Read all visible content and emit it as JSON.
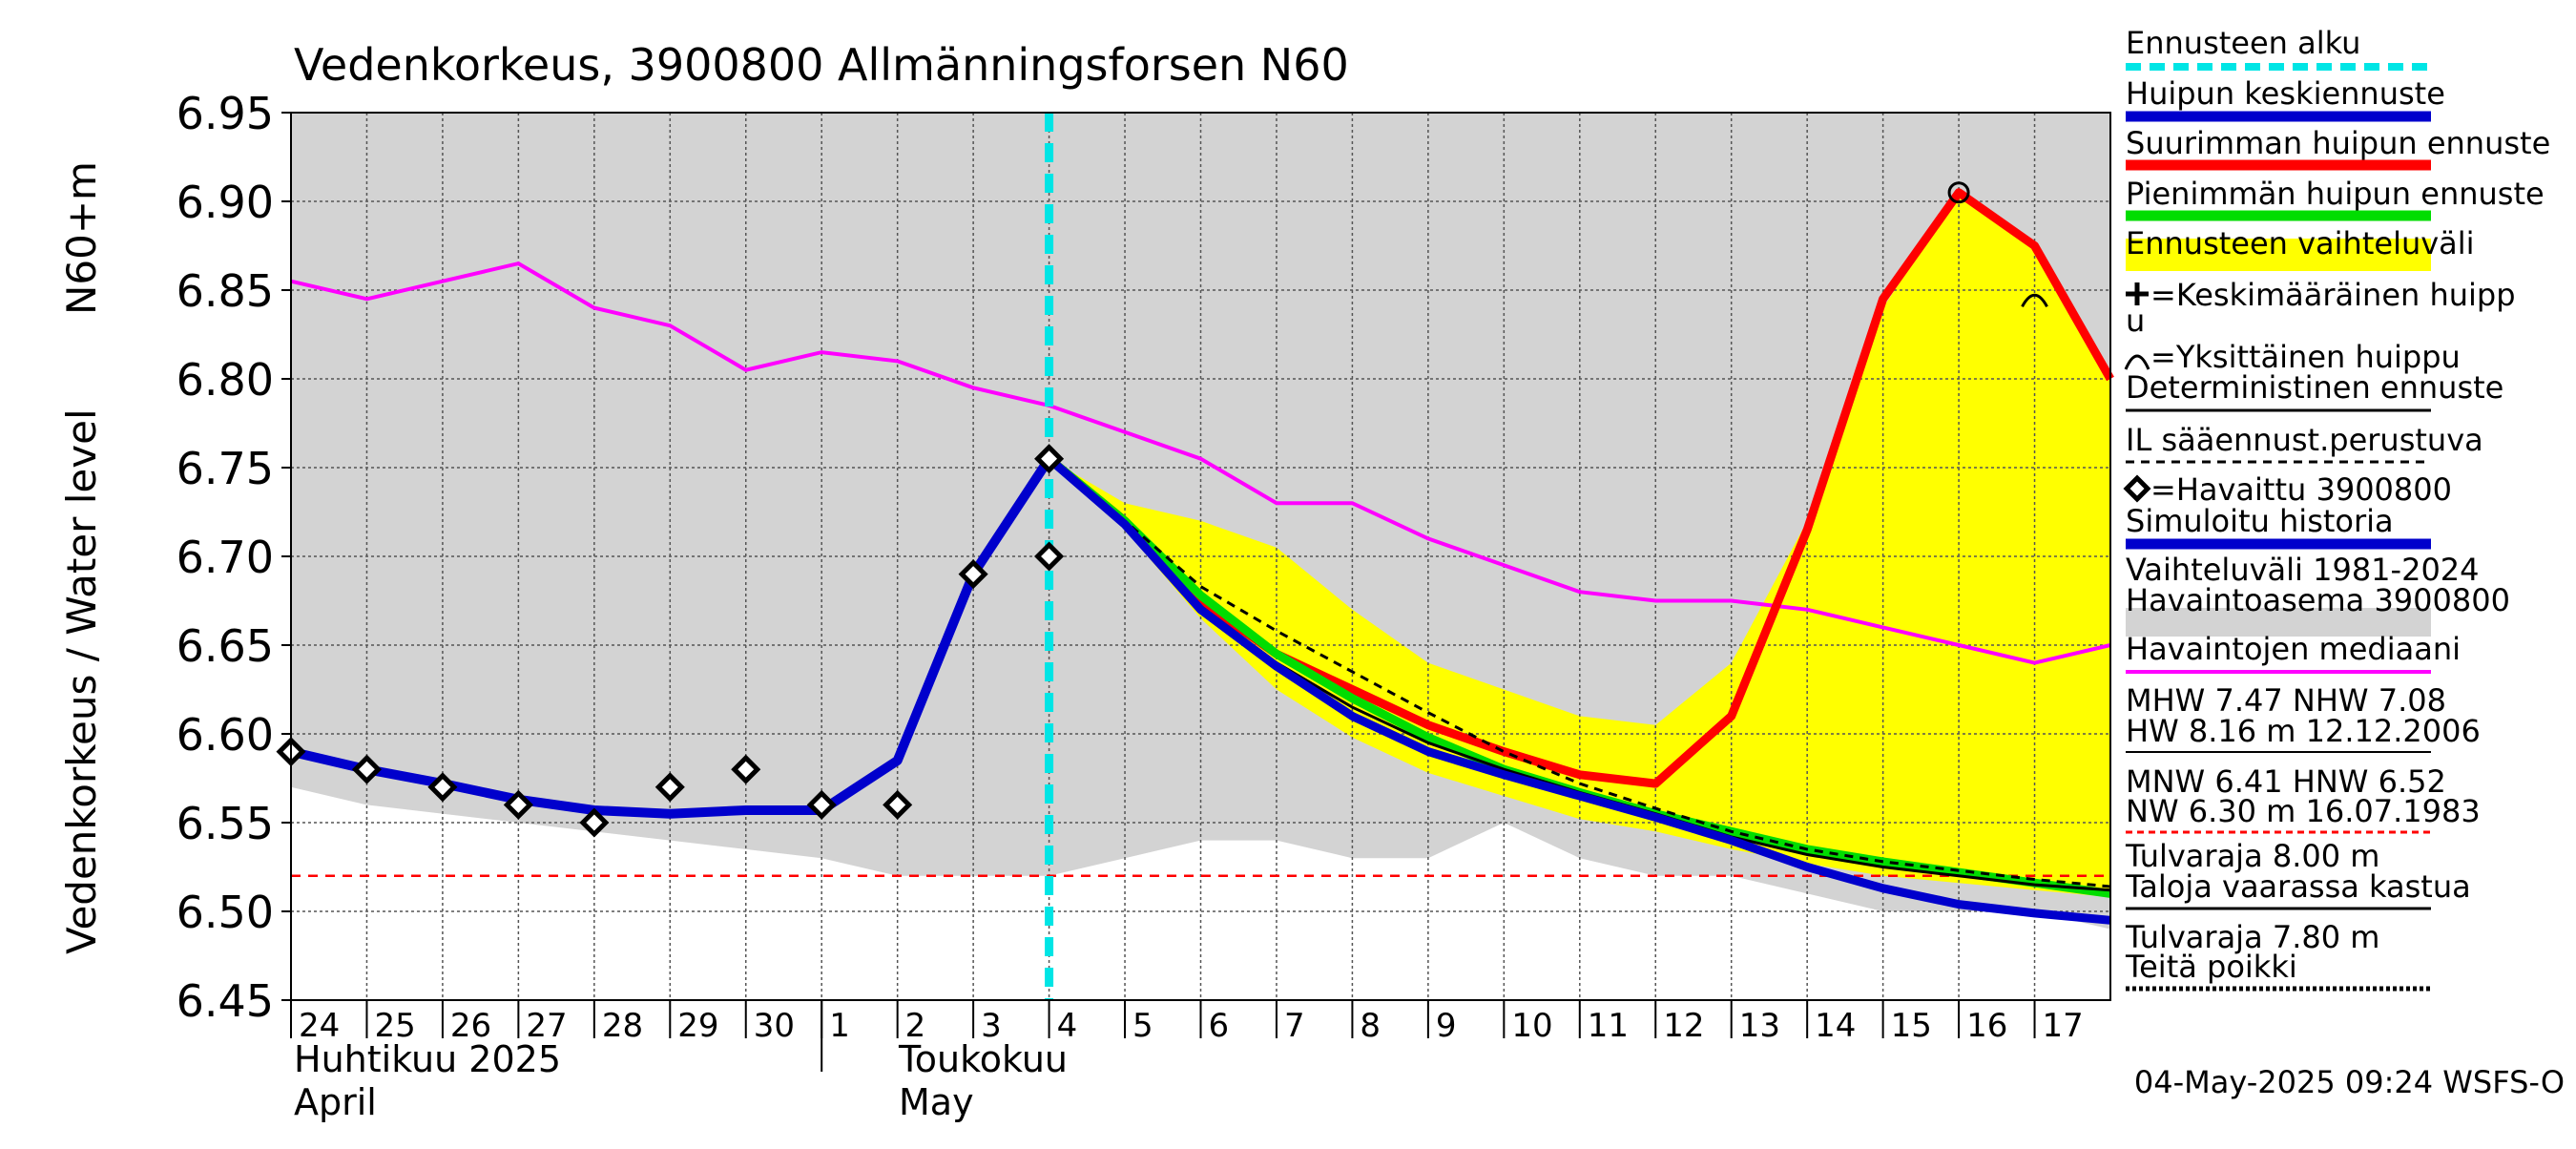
{
  "chart_data": {
    "type": "line",
    "title": "Vedenkorkeus, 3900800 Allmänningsforsen N60",
    "ylabel": "Vedenkorkeus / Water level",
    "ylabel_unit": "N60+m",
    "ylim": [
      6.45,
      6.95
    ],
    "yticks": [
      "6.45",
      "6.50",
      "6.55",
      "6.60",
      "6.65",
      "6.70",
      "6.75",
      "6.80",
      "6.85",
      "6.90",
      "6.95"
    ],
    "x_range_days": [
      0,
      24
    ],
    "day_labels": [
      "24",
      "25",
      "26",
      "27",
      "28",
      "29",
      "30",
      "1",
      "2",
      "3",
      "4",
      "5",
      "6",
      "7",
      "8",
      "9",
      "10",
      "11",
      "12",
      "13",
      "14",
      "15",
      "16",
      "17"
    ],
    "month_labels": {
      "april_fi": "Huhtikuu  2025",
      "april_en": "April",
      "may_fi": "Toukokuu",
      "may_en": "May"
    },
    "month_boundary_day": 7,
    "forecast_start_day": 10,
    "timestamp": "04-May-2025 09:24 WSFS-O",
    "series": {
      "range_upper": [
        [
          0,
          6.95
        ],
        [
          24,
          6.95
        ]
      ],
      "range_lower": [
        [
          0,
          6.57
        ],
        [
          1,
          6.56
        ],
        [
          7,
          6.53
        ],
        [
          8,
          6.52
        ],
        [
          10,
          6.52
        ],
        [
          11,
          6.53
        ],
        [
          12,
          6.54
        ],
        [
          13,
          6.54
        ],
        [
          14,
          6.53
        ],
        [
          15,
          6.53
        ],
        [
          16,
          6.55
        ],
        [
          17,
          6.53
        ],
        [
          18,
          6.52
        ],
        [
          19,
          6.52
        ],
        [
          20,
          6.51
        ],
        [
          21,
          6.5
        ],
        [
          22,
          6.5
        ],
        [
          23,
          6.5
        ],
        [
          24,
          6.49
        ]
      ],
      "forecast_band_upper": [
        [
          10,
          6.755
        ],
        [
          11,
          6.73
        ],
        [
          12,
          6.72
        ],
        [
          13,
          6.705
        ],
        [
          14,
          6.67
        ],
        [
          15,
          6.64
        ],
        [
          16,
          6.625
        ],
        [
          17,
          6.61
        ],
        [
          18,
          6.605
        ],
        [
          19,
          6.64
        ],
        [
          20,
          6.72
        ],
        [
          21,
          6.84
        ],
        [
          22,
          6.905
        ],
        [
          23,
          6.875
        ],
        [
          24,
          6.8
        ]
      ],
      "forecast_band_lower": [
        [
          10,
          6.755
        ],
        [
          11,
          6.715
        ],
        [
          12,
          6.665
        ],
        [
          13,
          6.625
        ],
        [
          14,
          6.598
        ],
        [
          15,
          6.578
        ],
        [
          16,
          6.565
        ],
        [
          17,
          6.552
        ],
        [
          18,
          6.545
        ],
        [
          19,
          6.535
        ],
        [
          20,
          6.527
        ],
        [
          21,
          6.52
        ],
        [
          22,
          6.516
        ],
        [
          23,
          6.512
        ],
        [
          24,
          6.508
        ]
      ],
      "median": [
        [
          0,
          6.855
        ],
        [
          1,
          6.845
        ],
        [
          2,
          6.855
        ],
        [
          3,
          6.865
        ],
        [
          4,
          6.84
        ],
        [
          5,
          6.83
        ],
        [
          6,
          6.805
        ],
        [
          7,
          6.815
        ],
        [
          8,
          6.81
        ],
        [
          9,
          6.795
        ],
        [
          10,
          6.785
        ],
        [
          11,
          6.77
        ],
        [
          12,
          6.755
        ],
        [
          13,
          6.73
        ],
        [
          14,
          6.73
        ],
        [
          15,
          6.71
        ],
        [
          16,
          6.695
        ],
        [
          17,
          6.68
        ],
        [
          18,
          6.675
        ],
        [
          19,
          6.675
        ],
        [
          20,
          6.67
        ],
        [
          21,
          6.66
        ],
        [
          22,
          6.65
        ],
        [
          23,
          6.64
        ],
        [
          24,
          6.65
        ]
      ],
      "simulated_history": [
        [
          0,
          6.59
        ],
        [
          1,
          6.58
        ],
        [
          2,
          6.572
        ],
        [
          3,
          6.563
        ],
        [
          4,
          6.557
        ],
        [
          5,
          6.555
        ],
        [
          6,
          6.557
        ],
        [
          7,
          6.557
        ],
        [
          8,
          6.585
        ],
        [
          9,
          6.69
        ],
        [
          10,
          6.755
        ]
      ],
      "max_peak_forecast": [
        [
          10,
          6.755
        ],
        [
          11,
          6.72
        ],
        [
          12,
          6.675
        ],
        [
          13,
          6.645
        ],
        [
          14,
          6.625
        ],
        [
          15,
          6.605
        ],
        [
          16,
          6.59
        ],
        [
          17,
          6.577
        ],
        [
          18,
          6.572
        ],
        [
          19,
          6.61
        ],
        [
          20,
          6.715
        ],
        [
          21,
          6.845
        ],
        [
          22,
          6.905
        ],
        [
          23,
          6.875
        ],
        [
          24,
          6.8
        ]
      ],
      "min_peak_forecast": [
        [
          10,
          6.755
        ],
        [
          11,
          6.72
        ],
        [
          12,
          6.678
        ],
        [
          13,
          6.645
        ],
        [
          14,
          6.62
        ],
        [
          15,
          6.598
        ],
        [
          16,
          6.58
        ],
        [
          17,
          6.567
        ],
        [
          18,
          6.555
        ],
        [
          19,
          6.545
        ],
        [
          20,
          6.535
        ],
        [
          21,
          6.528
        ],
        [
          22,
          6.522
        ],
        [
          23,
          6.516
        ],
        [
          24,
          6.51
        ]
      ],
      "deterministic": [
        [
          10,
          6.755
        ],
        [
          11,
          6.72
        ],
        [
          12,
          6.672
        ],
        [
          13,
          6.64
        ],
        [
          14,
          6.615
        ],
        [
          15,
          6.595
        ],
        [
          16,
          6.58
        ],
        [
          17,
          6.567
        ],
        [
          18,
          6.555
        ],
        [
          19,
          6.542
        ],
        [
          20,
          6.532
        ],
        [
          21,
          6.525
        ],
        [
          22,
          6.52
        ],
        [
          23,
          6.515
        ],
        [
          24,
          6.512
        ]
      ],
      "weather_forecast_based": [
        [
          10,
          6.755
        ],
        [
          11,
          6.72
        ],
        [
          12,
          6.683
        ],
        [
          13,
          6.658
        ],
        [
          14,
          6.635
        ],
        [
          15,
          6.612
        ],
        [
          16,
          6.59
        ],
        [
          17,
          6.572
        ],
        [
          18,
          6.558
        ],
        [
          19,
          6.545
        ],
        [
          20,
          6.535
        ],
        [
          21,
          6.528
        ],
        [
          22,
          6.523
        ],
        [
          23,
          6.518
        ],
        [
          24,
          6.514
        ]
      ],
      "mean_peak_forecast": [
        [
          10,
          6.755
        ],
        [
          11,
          6.718
        ],
        [
          12,
          6.67
        ],
        [
          13,
          6.638
        ],
        [
          14,
          6.61
        ],
        [
          15,
          6.59
        ],
        [
          16,
          6.577
        ],
        [
          17,
          6.565
        ],
        [
          18,
          6.553
        ],
        [
          19,
          6.54
        ],
        [
          20,
          6.525
        ],
        [
          21,
          6.513
        ],
        [
          22,
          6.504
        ],
        [
          23,
          6.499
        ],
        [
          24,
          6.495
        ]
      ],
      "observed": [
        [
          0,
          6.59
        ],
        [
          1,
          6.58
        ],
        [
          2,
          6.57
        ],
        [
          3,
          6.56
        ],
        [
          4,
          6.55
        ],
        [
          5,
          6.57
        ],
        [
          6,
          6.58
        ],
        [
          7,
          6.56
        ],
        [
          8,
          6.56
        ],
        [
          9,
          6.69
        ],
        [
          10,
          6.7
        ],
        [
          10,
          6.755
        ]
      ],
      "peak_marks": [
        [
          22,
          6.905
        ],
        [
          23,
          6.845
        ]
      ],
      "flood_line": 6.52
    },
    "colors": {
      "range": "#d3d3d3",
      "band": "#ffff00",
      "median": "#ff00ff",
      "history": "#0000cc",
      "max": "#ff0000",
      "min": "#00dd00",
      "forecast_start": "#00e5e5",
      "flood": "#ff0000"
    }
  },
  "legend": [
    {
      "label": "Ennusteen alku",
      "style": "cyan-dash"
    },
    {
      "label": "Huipun keskiennuste",
      "style": "blue"
    },
    {
      "label": "Suurimman huipun ennuste",
      "style": "red"
    },
    {
      "label": "Pienimmän huipun ennuste",
      "style": "green"
    },
    {
      "label": "Ennusteen vaihteluväli",
      "style": "yellow"
    },
    {
      "label": "=Keskimääräinen huipp",
      "label2": "u",
      "style": "plus"
    },
    {
      "label": "=Yksittäinen huippu",
      "style": "arc"
    },
    {
      "label": "Deterministinen ennuste",
      "style": "black"
    },
    {
      "label": "IL sääennust.perustuva",
      "style": "black-dash"
    },
    {
      "label": "=Havaittu 3900800",
      "style": "diamond"
    },
    {
      "label": "Simuloitu historia",
      "style": "blue"
    },
    {
      "label": "Vaihteluväli 1981-2024",
      "label2": " Havaintoasema 3900800",
      "style": "gray"
    },
    {
      "label": "Havaintojen mediaani",
      "style": "magenta"
    },
    {
      "label": "MHW   7.47 NHW   7.08",
      "label2": "HW   8.16 m 12.12.2006",
      "style": "black-thin"
    },
    {
      "label": "MNW   6.41 HNW   6.52",
      "label2": "NW   6.30 m 16.07.1983",
      "style": "red-dash"
    },
    {
      "label": "Tulvaraja 8.00 m",
      "label2": "Taloja vaarassa kastua",
      "style": "black-thin2"
    },
    {
      "label": "Tulvaraja 7.80 m",
      "label2": "Teitä poikki",
      "style": "black-dot"
    }
  ]
}
